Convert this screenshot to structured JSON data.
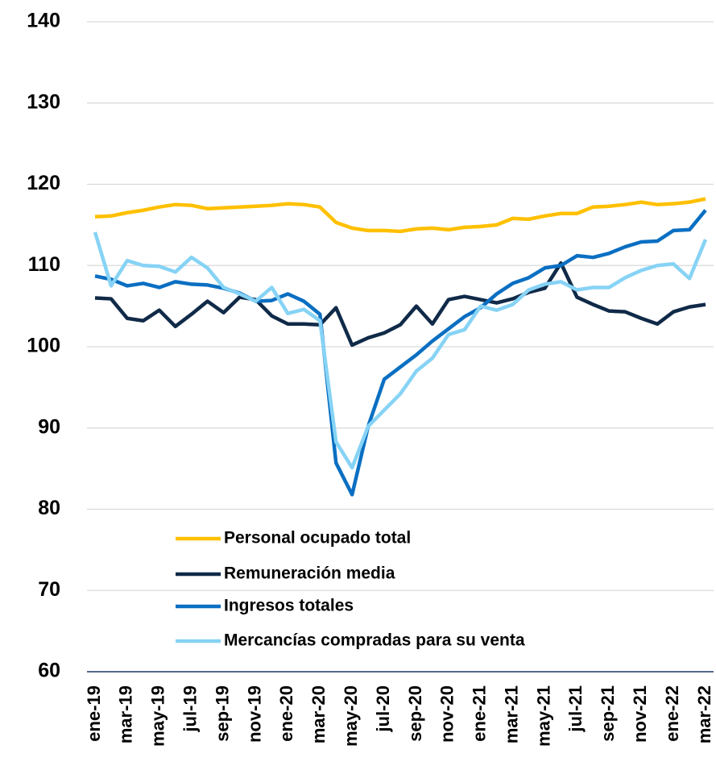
{
  "chart_data": {
    "type": "line",
    "categories": [
      "ene-19",
      null,
      "mar-19",
      null,
      "may-19",
      null,
      "jul-19",
      null,
      "sep-19",
      null,
      "nov-19",
      null,
      "ene-20",
      null,
      "mar-20",
      null,
      "may-20",
      null,
      "jul-20",
      null,
      "sep-20",
      null,
      "nov-20",
      null,
      "ene-21",
      null,
      "mar-21",
      null,
      "may-21",
      null,
      "jul-21",
      null,
      "sep-21",
      null,
      "nov-21",
      null,
      "ene-22",
      null,
      "mar-22"
    ],
    "series": [
      {
        "name": "Personal ocupado total",
        "color": "#FFC000",
        "values": [
          116.0,
          116.1,
          116.5,
          116.8,
          117.2,
          117.5,
          117.4,
          117.0,
          117.1,
          117.2,
          117.3,
          117.4,
          117.6,
          117.5,
          117.2,
          115.3,
          114.6,
          114.3,
          114.3,
          114.2,
          114.5,
          114.6,
          114.4,
          114.7,
          114.8,
          115.0,
          115.8,
          115.7,
          116.1,
          116.4,
          116.4,
          117.2,
          117.3,
          117.5,
          117.8,
          117.5,
          117.6,
          117.8,
          118.2
        ]
      },
      {
        "name": "Remuneración media",
        "color": "#102A48",
        "values": [
          106.0,
          105.9,
          103.5,
          103.2,
          104.5,
          102.5,
          104.0,
          105.6,
          104.2,
          106.1,
          105.8,
          103.8,
          102.8,
          102.8,
          102.7,
          104.8,
          100.2,
          101.1,
          101.7,
          102.7,
          105.0,
          102.8,
          105.8,
          106.2,
          105.8,
          105.4,
          105.9,
          106.7,
          107.2,
          110.3,
          106.1,
          105.2,
          104.4,
          104.3,
          103.5,
          102.8,
          104.3,
          104.9,
          105.2
        ]
      },
      {
        "name": "Ingresos totales",
        "color": "#0A6FC2",
        "values": [
          108.7,
          108.3,
          107.5,
          107.8,
          107.3,
          108.0,
          107.7,
          107.6,
          107.2,
          106.6,
          105.6,
          105.7,
          106.5,
          105.6,
          104.0,
          85.7,
          81.8,
          90.2,
          96.0,
          97.5,
          99.0,
          100.7,
          102.2,
          103.7,
          104.8,
          106.5,
          107.8,
          108.5,
          109.7,
          110.0,
          111.2,
          111.0,
          111.5,
          112.3,
          112.9,
          113.0,
          114.3,
          114.4,
          116.8
        ]
      },
      {
        "name": "Mercancías compradas para su venta",
        "color": "#86D3F5",
        "values": [
          114.1,
          107.5,
          110.6,
          110.0,
          109.9,
          109.2,
          111.0,
          109.7,
          107.3,
          106.5,
          105.6,
          107.3,
          104.1,
          104.6,
          103.2,
          88.3,
          85.1,
          90.2,
          92.2,
          94.2,
          97.0,
          98.6,
          101.5,
          102.1,
          105.0,
          104.5,
          105.2,
          107.0,
          107.7,
          108.0,
          107.0,
          107.3,
          107.3,
          108.5,
          109.4,
          110.0,
          110.2,
          108.4,
          113.2
        ]
      }
    ],
    "ylim": [
      60,
      140
    ],
    "yticks": [
      60,
      70,
      80,
      90,
      100,
      110,
      120,
      130,
      140
    ],
    "grid": true
  }
}
